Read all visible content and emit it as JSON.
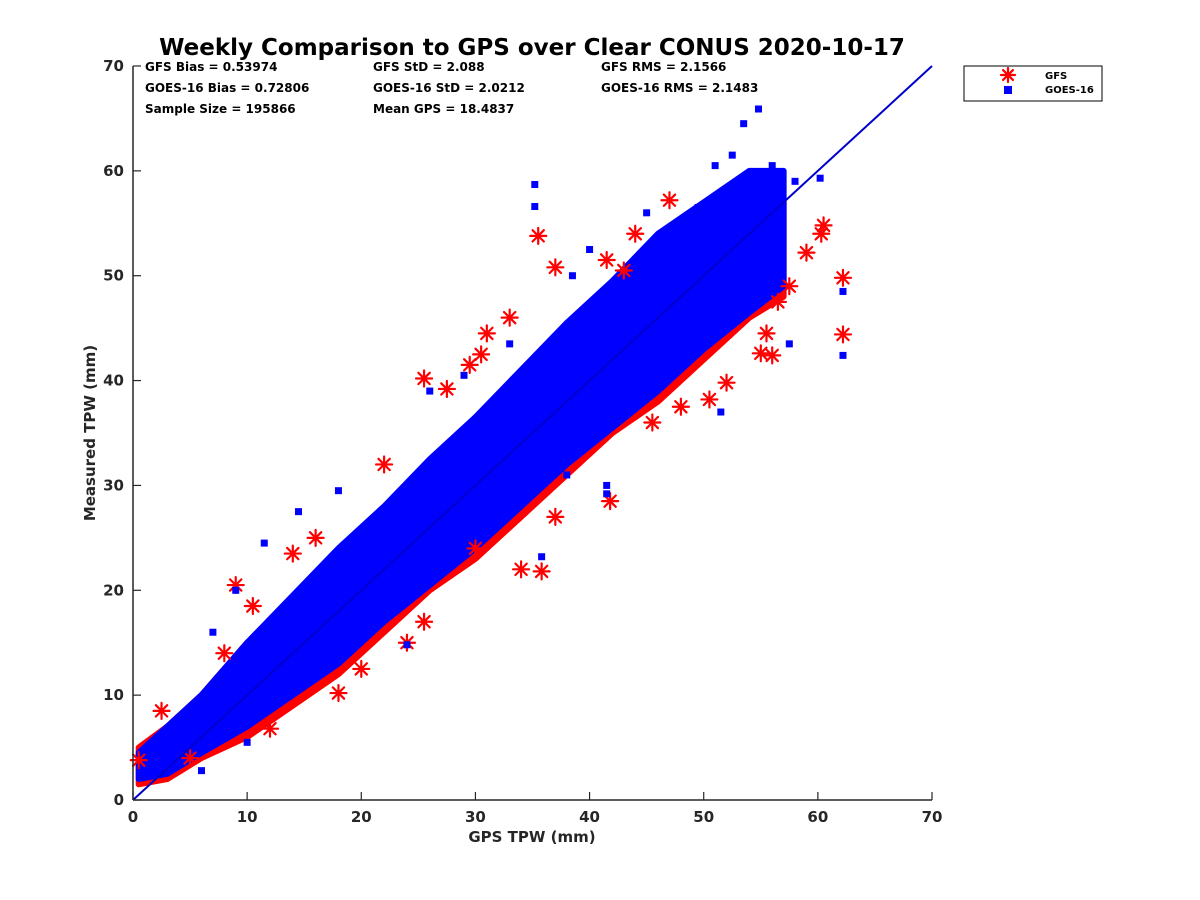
{
  "chart_data": {
    "type": "scatter",
    "title": "Weekly Comparison to GPS over Clear CONUS 2020-10-17",
    "xlabel": "GPS TPW (mm)",
    "ylabel": "Measured TPW (mm)",
    "xlim": [
      0,
      70
    ],
    "ylim": [
      0,
      70
    ],
    "x_ticks": [
      "0",
      "10",
      "20",
      "30",
      "40",
      "50",
      "60",
      "70"
    ],
    "y_ticks": [
      "0",
      "10",
      "20",
      "30",
      "40",
      "50",
      "60",
      "70"
    ],
    "grid": false,
    "legend_position": "top-right",
    "stats": [
      "GFS Bias = 0.53974",
      "GFS StD = 2.088",
      "GFS RMS = 2.1566",
      "GOES-16 Bias = 0.72806",
      "GOES-16 StD = 2.0212",
      "GOES-16 RMS = 2.1483",
      "Sample Size = 195866",
      "Mean GPS = 18.4837"
    ],
    "reference_line": {
      "name": "1:1",
      "x": [
        0,
        70
      ],
      "y": [
        0,
        70
      ],
      "color": "#0000cc"
    },
    "series": [
      {
        "name": "GFS",
        "marker": "asterisk",
        "color": "#ff0000",
        "band": {
          "x": [
            0.5,
            3,
            6,
            10,
            14,
            18,
            22,
            26,
            30,
            34,
            38,
            42,
            46,
            50,
            54,
            57
          ],
          "low": [
            1.5,
            2,
            4,
            6,
            9,
            12,
            16,
            20,
            23,
            27,
            31,
            35,
            38,
            42,
            46,
            48
          ],
          "high": [
            5,
            7,
            10,
            15,
            19,
            23,
            27,
            32,
            36,
            40,
            44,
            48,
            51,
            54,
            56,
            57
          ]
        },
        "points": [
          {
            "x": 9,
            "y": 20.5
          },
          {
            "x": 10.5,
            "y": 18.5
          },
          {
            "x": 25.5,
            "y": 40.2
          },
          {
            "x": 27.5,
            "y": 39.2
          },
          {
            "x": 31,
            "y": 44.5
          },
          {
            "x": 30.5,
            "y": 42.5
          },
          {
            "x": 35.5,
            "y": 53.8
          },
          {
            "x": 37,
            "y": 50.8
          },
          {
            "x": 41.5,
            "y": 51.5
          },
          {
            "x": 44,
            "y": 54
          },
          {
            "x": 47,
            "y": 57.2
          },
          {
            "x": 41.8,
            "y": 28.5
          },
          {
            "x": 37,
            "y": 27
          },
          {
            "x": 34,
            "y": 22
          },
          {
            "x": 35.8,
            "y": 21.8
          },
          {
            "x": 25.5,
            "y": 17
          },
          {
            "x": 18,
            "y": 10.2
          },
          {
            "x": 12,
            "y": 6.8
          },
          {
            "x": 5,
            "y": 4
          },
          {
            "x": 2.5,
            "y": 8.5
          },
          {
            "x": 0.5,
            "y": 3.8
          },
          {
            "x": 24,
            "y": 15
          },
          {
            "x": 50.5,
            "y": 38.2
          },
          {
            "x": 52,
            "y": 39.8
          },
          {
            "x": 55,
            "y": 42.6
          },
          {
            "x": 56,
            "y": 42.4
          },
          {
            "x": 57.5,
            "y": 49
          },
          {
            "x": 59,
            "y": 52.2
          },
          {
            "x": 60.3,
            "y": 54
          },
          {
            "x": 60.5,
            "y": 54.8
          },
          {
            "x": 62.2,
            "y": 49.8
          },
          {
            "x": 62.2,
            "y": 44.4
          },
          {
            "x": 55.5,
            "y": 44.5
          },
          {
            "x": 56.5,
            "y": 47.5
          },
          {
            "x": 33,
            "y": 46
          },
          {
            "x": 29.5,
            "y": 41.5
          },
          {
            "x": 22,
            "y": 32
          },
          {
            "x": 16,
            "y": 25
          },
          {
            "x": 20,
            "y": 12.5
          },
          {
            "x": 30,
            "y": 24
          },
          {
            "x": 45.5,
            "y": 36
          },
          {
            "x": 48,
            "y": 37.5
          },
          {
            "x": 8,
            "y": 14
          },
          {
            "x": 14,
            "y": 23.5
          },
          {
            "x": 43,
            "y": 50.5
          }
        ]
      },
      {
        "name": "GOES-16",
        "marker": "square",
        "color": "#0000ff",
        "band": {
          "x": [
            0.5,
            3,
            6,
            10,
            14,
            18,
            22,
            26,
            30,
            34,
            38,
            42,
            46,
            50,
            54,
            57
          ],
          "low": [
            2,
            2.5,
            4.5,
            7,
            10,
            13,
            17,
            20.5,
            24,
            28,
            32,
            35.5,
            39,
            43,
            46.5,
            49
          ],
          "high": [
            4.5,
            7,
            10,
            15,
            19.5,
            24,
            28,
            32.5,
            36.5,
            41,
            45.5,
            49.5,
            54,
            57,
            60,
            60
          ]
        },
        "points": [
          {
            "x": 35.2,
            "y": 58.7
          },
          {
            "x": 35.2,
            "y": 56.6
          },
          {
            "x": 54.8,
            "y": 65.9
          },
          {
            "x": 53.5,
            "y": 64.5
          },
          {
            "x": 51,
            "y": 60.5
          },
          {
            "x": 56,
            "y": 60.5
          },
          {
            "x": 58,
            "y": 59
          },
          {
            "x": 60.2,
            "y": 59.3
          },
          {
            "x": 62.2,
            "y": 48.5
          },
          {
            "x": 62.2,
            "y": 42.4
          },
          {
            "x": 57.5,
            "y": 43.5
          },
          {
            "x": 41.5,
            "y": 30
          },
          {
            "x": 41.5,
            "y": 29.2
          },
          {
            "x": 38,
            "y": 31
          },
          {
            "x": 35.8,
            "y": 23.2
          },
          {
            "x": 24,
            "y": 14.8
          },
          {
            "x": 14.5,
            "y": 27.5
          },
          {
            "x": 18,
            "y": 29.5
          },
          {
            "x": 7,
            "y": 16
          },
          {
            "x": 9,
            "y": 20
          },
          {
            "x": 11.5,
            "y": 24.5
          },
          {
            "x": 26,
            "y": 39
          },
          {
            "x": 29,
            "y": 40.5
          },
          {
            "x": 33,
            "y": 43.5
          },
          {
            "x": 38.5,
            "y": 50
          },
          {
            "x": 40,
            "y": 52.5
          },
          {
            "x": 45,
            "y": 56
          },
          {
            "x": 6,
            "y": 2.8
          },
          {
            "x": 10,
            "y": 5.5
          },
          {
            "x": 51.5,
            "y": 37
          },
          {
            "x": 49.5,
            "y": 56.5
          },
          {
            "x": 52.5,
            "y": 61.5
          },
          {
            "x": 55.5,
            "y": 55
          }
        ]
      }
    ]
  }
}
